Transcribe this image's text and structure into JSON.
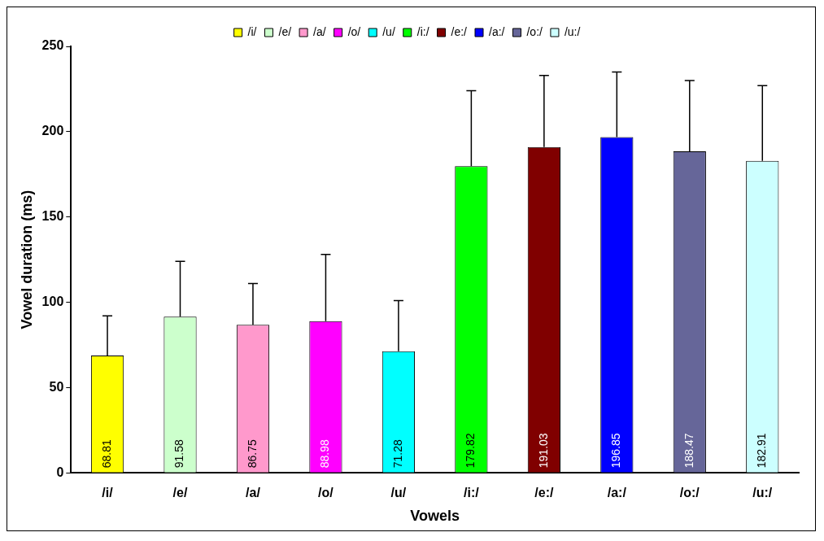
{
  "chart_data": {
    "type": "bar",
    "xlabel": "Vowels",
    "ylabel": "Vowel duration (ms)",
    "stacked": true,
    "categories": [
      "/i/",
      "/e/",
      "/a/",
      "/o/",
      "/u/",
      "/i:/",
      "/e:/",
      "/a:/",
      "/o:/",
      "/u:/"
    ],
    "series": [
      {
        "name": "/i/",
        "color": "#ffff00",
        "values": [
          68.81,
          null,
          null,
          null,
          null,
          null,
          null,
          null,
          null,
          null
        ],
        "errors": [
          [
            68.81,
            92
          ],
          null,
          null,
          null,
          null,
          null,
          null,
          null,
          null,
          null
        ]
      },
      {
        "name": "/e/",
        "color": "#ccffcc",
        "values": [
          null,
          91.58,
          null,
          null,
          null,
          null,
          null,
          null,
          null,
          null
        ],
        "errors": [
          null,
          [
            91.58,
            124
          ],
          null,
          null,
          null,
          null,
          null,
          null,
          null,
          null
        ]
      },
      {
        "name": "/a/",
        "color": "#ff99cc",
        "values": [
          null,
          null,
          86.75,
          null,
          null,
          null,
          null,
          null,
          null,
          null
        ],
        "errors": [
          null,
          null,
          [
            86.75,
            111
          ],
          null,
          null,
          null,
          null,
          null,
          null,
          null
        ]
      },
      {
        "name": "/o/",
        "color": "#ff00ff",
        "values": [
          null,
          null,
          null,
          88.98,
          null,
          null,
          null,
          null,
          null,
          null
        ],
        "errors": [
          null,
          null,
          null,
          [
            88.98,
            128
          ],
          null,
          null,
          null,
          null,
          null,
          null
        ]
      },
      {
        "name": "/u/",
        "color": "#00ffff",
        "values": [
          null,
          null,
          null,
          null,
          71.28,
          null,
          null,
          null,
          null,
          null
        ],
        "errors": [
          null,
          null,
          null,
          null,
          [
            71.28,
            101
          ],
          null,
          null,
          null,
          null,
          null
        ]
      },
      {
        "name": "/i:/",
        "color": "#00ff00",
        "values": [
          null,
          null,
          null,
          null,
          null,
          179.82,
          null,
          null,
          null,
          null
        ],
        "errors": [
          null,
          null,
          null,
          null,
          null,
          [
            179.82,
            224
          ],
          null,
          null,
          null,
          null
        ]
      },
      {
        "name": "/e:/",
        "color": "#800000",
        "values": [
          null,
          null,
          null,
          null,
          null,
          null,
          191.03,
          null,
          null,
          null
        ],
        "errors": [
          null,
          null,
          null,
          null,
          null,
          null,
          [
            191.03,
            233
          ],
          null,
          null,
          null
        ]
      },
      {
        "name": "/a:/",
        "color": "#0000ff",
        "values": [
          null,
          null,
          null,
          null,
          null,
          null,
          null,
          196.85,
          null,
          null
        ],
        "errors": [
          null,
          null,
          null,
          null,
          null,
          null,
          null,
          [
            196.85,
            235
          ],
          null,
          null
        ]
      },
      {
        "name": "/o:/",
        "color": "#666699",
        "values": [
          null,
          null,
          null,
          null,
          null,
          null,
          null,
          null,
          188.47,
          null
        ],
        "errors": [
          null,
          null,
          null,
          null,
          null,
          null,
          null,
          null,
          [
            188.47,
            230
          ],
          null
        ]
      },
      {
        "name": "/u:/",
        "color": "#ccffff",
        "values": [
          null,
          null,
          null,
          null,
          null,
          null,
          null,
          null,
          null,
          182.91
        ],
        "errors": [
          null,
          null,
          null,
          null,
          null,
          null,
          null,
          null,
          null,
          [
            182.91,
            227
          ]
        ]
      }
    ],
    "ylim": [
      0,
      250
    ],
    "yticks": [
      0,
      50,
      100,
      150,
      200,
      250
    ],
    "grid": false,
    "legend": "top",
    "data_labels": true
  }
}
